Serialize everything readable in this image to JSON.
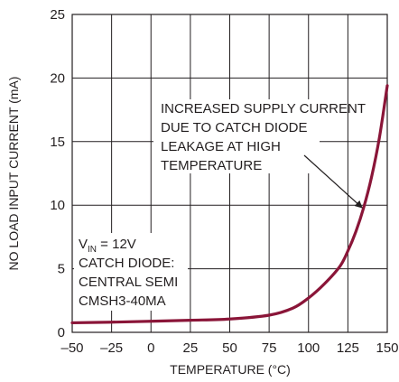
{
  "chart_data": {
    "type": "line",
    "title": "",
    "xlabel": "TEMPERATURE (°C)",
    "ylabel": "NO LOAD INPUT CURRENT (mA)",
    "xlim": [
      -50,
      150
    ],
    "ylim": [
      0,
      25
    ],
    "x_ticks": [
      "–50",
      "–25",
      "0",
      "25",
      "50",
      "75",
      "100",
      "125",
      "150"
    ],
    "y_ticks": [
      "0",
      "5",
      "10",
      "15",
      "20",
      "25"
    ],
    "grid": true,
    "series": [
      {
        "name": "",
        "color": "#8a1538",
        "x": [
          -50,
          -25,
          0,
          25,
          50,
          75,
          90,
          100,
          110,
          120,
          125,
          130,
          135,
          140,
          145,
          150
        ],
        "y": [
          0.75,
          0.8,
          0.87,
          0.95,
          1.05,
          1.35,
          1.9,
          2.7,
          3.8,
          5.2,
          6.4,
          7.9,
          9.8,
          12.2,
          15.3,
          19.4
        ]
      }
    ],
    "annotations": [
      {
        "lines": [
          "INCREASED SUPPLY CURRENT",
          "DUE TO CATCH DIODE",
          "LEAKAGE AT HIGH",
          "TEMPERATURE"
        ],
        "arrow_to": [
          134,
          9.8
        ]
      },
      {
        "vin": {
          "main": "V",
          "sub": "IN",
          "rest": " = 12V"
        },
        "lines": [
          "CATCH DIODE:",
          "CENTRAL SEMI",
          "CMSH3-40MA"
        ]
      }
    ]
  }
}
